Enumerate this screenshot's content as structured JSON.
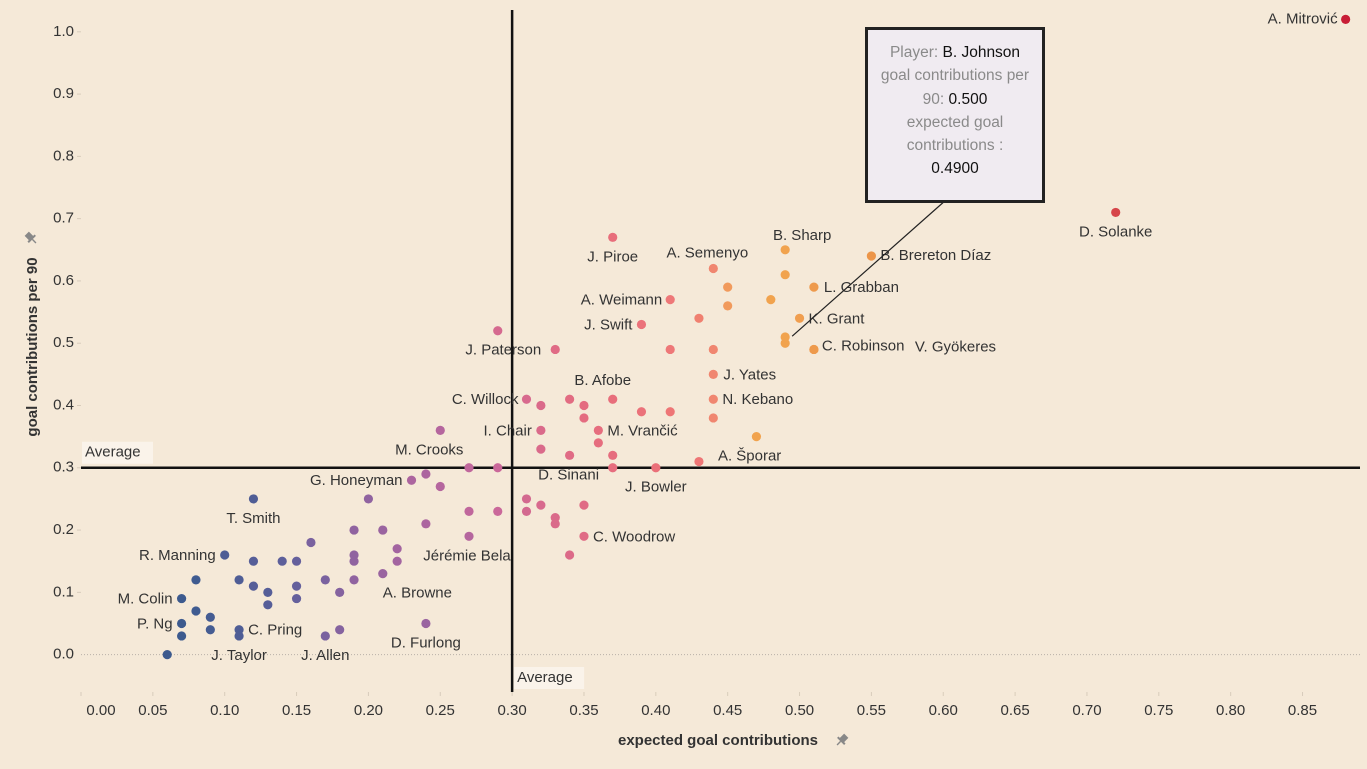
{
  "chart_data": {
    "type": "scatter",
    "x_label": "expected goal contributions",
    "y_label": "goal contributions per 90",
    "xlim": [
      0,
      0.89
    ],
    "ylim": [
      -0.06,
      1.035
    ],
    "xticks": [
      {
        "value": 0,
        "label": "0.00"
      },
      0.05,
      {
        "value": 0.1,
        "label": "0.10"
      },
      0.15,
      {
        "value": 0.2,
        "label": "0.20"
      },
      0.25,
      {
        "value": 0.3,
        "label": "0.30"
      },
      0.35,
      {
        "value": 0.4,
        "label": "0.40"
      },
      0.45,
      {
        "value": 0.5,
        "label": "0.50"
      },
      0.55,
      {
        "value": 0.6,
        "label": "0.60"
      },
      0.65,
      {
        "value": 0.7,
        "label": "0.70"
      },
      0.75,
      {
        "value": 0.8,
        "label": "0.80"
      },
      0.85
    ],
    "yticks": [
      {
        "value": 0,
        "label": "0.0"
      },
      0.1,
      0.2,
      0.3,
      0.4,
      0.5,
      0.6,
      0.7,
      0.8,
      0.9,
      {
        "value": 1,
        "label": "1.0"
      }
    ],
    "reference_lines": [
      {
        "axis": "x",
        "value": 0.3,
        "label": "Average"
      },
      {
        "axis": "y",
        "value": 0.3,
        "label": "Average"
      }
    ],
    "x": [
      0.06,
      0.07,
      0.07,
      0.07,
      0.08,
      0.08,
      0.09,
      0.09,
      0.1,
      0.11,
      0.11,
      0.11,
      0.12,
      0.12,
      0.12,
      0.13,
      0.13,
      0.14,
      0.15,
      0.15,
      0.15,
      0.16,
      0.17,
      0.17,
      0.18,
      0.18,
      0.19,
      0.19,
      0.19,
      0.19,
      0.2,
      0.21,
      0.21,
      0.22,
      0.22,
      0.23,
      0.24,
      0.24,
      0.24,
      0.25,
      0.25,
      0.27,
      0.27,
      0.27,
      0.29,
      0.29,
      0.29,
      0.31,
      0.31,
      0.31,
      0.32,
      0.32,
      0.32,
      0.32,
      0.33,
      0.33,
      0.33,
      0.34,
      0.34,
      0.34,
      0.35,
      0.35,
      0.35,
      0.35,
      0.36,
      0.36,
      0.37,
      0.37,
      0.37,
      0.37,
      0.39,
      0.39,
      0.4,
      0.41,
      0.41,
      0.41,
      0.43,
      0.43,
      0.44,
      0.44,
      0.44,
      0.44,
      0.44,
      0.45,
      0.45,
      0.47,
      0.48,
      0.49,
      0.49,
      0.49,
      0.49,
      0.5,
      0.51,
      0.51,
      0.51,
      0.55,
      0.72,
      0.88
    ],
    "values": [
      0.0,
      0.09,
      0.05,
      0.03,
      0.12,
      0.07,
      0.06,
      0.04,
      0.16,
      0.12,
      0.04,
      0.03,
      0.25,
      0.15,
      0.11,
      0.1,
      0.08,
      0.15,
      0.15,
      0.11,
      0.09,
      0.18,
      0.12,
      0.03,
      0.1,
      0.04,
      0.2,
      0.16,
      0.15,
      0.12,
      0.25,
      0.2,
      0.13,
      0.17,
      0.15,
      0.28,
      0.29,
      0.21,
      0.05,
      0.36,
      0.27,
      0.3,
      0.23,
      0.19,
      0.52,
      0.3,
      0.23,
      0.41,
      0.25,
      0.23,
      0.4,
      0.36,
      0.33,
      0.24,
      0.49,
      0.22,
      0.21,
      0.41,
      0.32,
      0.16,
      0.4,
      0.38,
      0.24,
      0.19,
      0.36,
      0.34,
      0.67,
      0.41,
      0.32,
      0.3,
      0.53,
      0.39,
      0.3,
      0.57,
      0.49,
      0.39,
      0.54,
      0.31,
      0.62,
      0.49,
      0.45,
      0.41,
      0.38,
      0.59,
      0.56,
      0.35,
      0.57,
      0.65,
      0.61,
      0.51,
      0.5,
      0.54,
      0.59,
      0.49,
      0.49,
      0.64,
      0.71,
      1.02
    ],
    "colors": [
      "#3d5a8e",
      "#3d5a8e",
      "#3d5a8e",
      "#3d5a8e",
      "#3f5b90",
      "#3f5b90",
      "#455c92",
      "#455c92",
      "#4f5d95",
      "#4f5d95",
      "#4f5d95",
      "#4f5d95",
      "#4f5d95",
      "#565e98",
      "#565e98",
      "#565e98",
      "#565e98",
      "#5d5f9a",
      "#65609c",
      "#65609c",
      "#65609c",
      "#7a629f",
      "#7a629f",
      "#7a629f",
      "#85639f",
      "#85639f",
      "#9063a0",
      "#9063a0",
      "#9063a0",
      "#9063a0",
      "#9063a0",
      "#9a64a0",
      "#9a64a0",
      "#a364a0",
      "#a364a0",
      "#ac659f",
      "#ac659f",
      "#ac659f",
      "#9a64a0",
      "#b5669e",
      "#b5669e",
      "#c0679c",
      "#c0679c",
      "#b5669e",
      "#d5698f",
      "#ca689a",
      "#ca689a",
      "#d86a8e",
      "#d3698f",
      "#d3698f",
      "#da6a8a",
      "#da6a8a",
      "#da6a8a",
      "#d86a8e",
      "#e06b85",
      "#da6a8a",
      "#da6a8a",
      "#e26c82",
      "#e06b85",
      "#dc6a88",
      "#e46c80",
      "#e46c80",
      "#e06b85",
      "#e06b85",
      "#e66d7e",
      "#e66d7e",
      "#e86e7b",
      "#e86e7b",
      "#e66d7e",
      "#e66d7e",
      "#eb727a",
      "#eb727a",
      "#ea7079",
      "#ee7878",
      "#ee7878",
      "#ee7676",
      "#f08070",
      "#ee7676",
      "#f08670",
      "#f08670",
      "#f08670",
      "#f08670",
      "#f08670",
      "#f19a5c",
      "#f19a5c",
      "#f1a34e",
      "#f1a34e",
      "#f1a34e",
      "#f1a34e",
      "#f1a34e",
      "#f1a34e",
      "#f09e4f",
      "#ee9a4c",
      "#ee9a4c",
      "#ee9a4c",
      "#ec9548",
      "#d6464a",
      "#c81d36"
    ],
    "labels": [
      null,
      "M. Colin",
      "P. Ng",
      null,
      null,
      null,
      null,
      null,
      "R. Manning",
      null,
      "C. Pring",
      "J. Taylor",
      "T. Smith",
      null,
      null,
      null,
      null,
      null,
      null,
      null,
      null,
      null,
      null,
      "J. Allen",
      null,
      null,
      null,
      null,
      null,
      null,
      null,
      null,
      "A. Browne",
      null,
      null,
      "G. Honeyman",
      null,
      null,
      "D. Furlong",
      "M. Crooks",
      null,
      null,
      null,
      "Jérémie Bela",
      null,
      null,
      null,
      "C. Willock",
      null,
      null,
      null,
      "I. Chair",
      null,
      null,
      "J. Paterson",
      null,
      null,
      null,
      "D. Sinani",
      null,
      null,
      null,
      null,
      "C. Woodrow",
      "M. Vrančić",
      null,
      "J. Piroe",
      "B. Afobe",
      null,
      null,
      "J. Swift",
      null,
      "J. Bowler",
      "A. Weimann",
      null,
      null,
      null,
      "A. Šporar",
      "A. Semenyo",
      null,
      "J. Yates",
      "N. Kebano",
      null,
      null,
      null,
      null,
      null,
      "B. Sharp",
      null,
      null,
      null,
      "K. Grant",
      "L. Grabban",
      "C. Robinson",
      "V. Gyökeres",
      "B. Brereton Díaz",
      "D. Solanke",
      "A. Mitrović"
    ],
    "tooltip": {
      "player_label": "Player:",
      "player": "B. Johnson",
      "y_label": "goal contributions per 90:",
      "y_value": "0.500",
      "x_label": "expected goal contributions :",
      "x_value": "0.4900"
    }
  }
}
